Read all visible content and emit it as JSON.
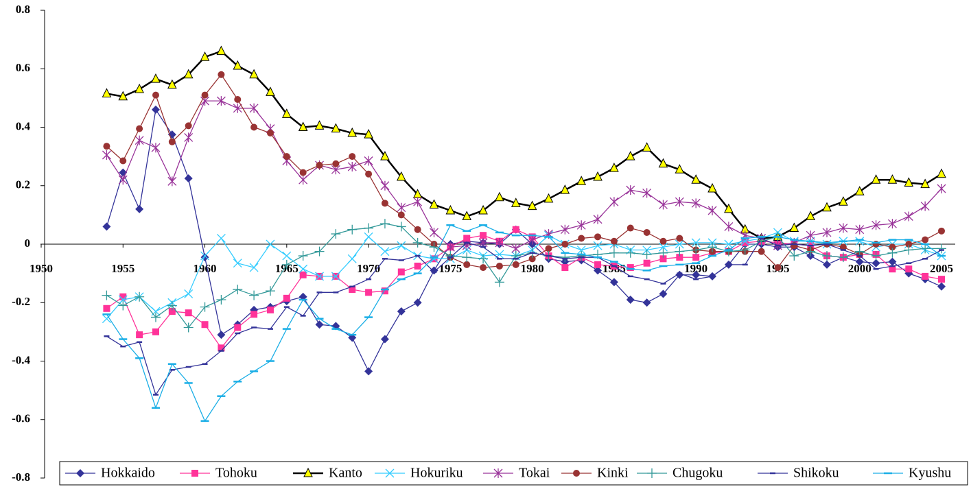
{
  "chart_data": {
    "type": "line",
    "x": [
      1954,
      1955,
      1956,
      1957,
      1958,
      1959,
      1960,
      1961,
      1962,
      1963,
      1964,
      1965,
      1966,
      1967,
      1968,
      1969,
      1970,
      1971,
      1972,
      1973,
      1974,
      1975,
      1976,
      1977,
      1978,
      1979,
      1980,
      1981,
      1982,
      1983,
      1984,
      1985,
      1986,
      1987,
      1988,
      1989,
      1990,
      1991,
      1992,
      1993,
      1994,
      1995,
      1996,
      1997,
      1998,
      1999,
      2000,
      2001,
      2002,
      2003,
      2004,
      2005
    ],
    "xlim": [
      1950,
      2005
    ],
    "xticks": [
      1950,
      1955,
      1960,
      1965,
      1970,
      1975,
      1980,
      1985,
      1990,
      1995,
      2000,
      2005
    ],
    "ylim": [
      -0.8,
      0.8
    ],
    "yticks": [
      0.8,
      0.6,
      0.4,
      0.2,
      0,
      -0.2,
      -0.4,
      -0.6,
      -0.8
    ],
    "legend": "bottom",
    "series": [
      {
        "name": "Hokkaido",
        "color": "#333399",
        "marker": "diamond",
        "values": [
          0.06,
          0.245,
          0.12,
          0.46,
          0.375,
          0.225,
          -0.045,
          -0.31,
          -0.275,
          -0.225,
          -0.215,
          -0.195,
          -0.18,
          -0.275,
          -0.28,
          -0.32,
          -0.435,
          -0.325,
          -0.23,
          -0.2,
          -0.09,
          0.0,
          0.01,
          0.005,
          0.0,
          0.05,
          0.0,
          -0.05,
          -0.06,
          -0.055,
          -0.09,
          -0.13,
          -0.19,
          -0.2,
          -0.17,
          -0.105,
          -0.105,
          -0.11,
          -0.07,
          0.0,
          0.0,
          -0.01,
          -0.01,
          -0.04,
          -0.07,
          -0.045,
          -0.06,
          -0.065,
          -0.06,
          -0.1,
          -0.12,
          -0.145
        ]
      },
      {
        "name": "Tohoku",
        "color": "#ff3399",
        "marker": "square",
        "values": [
          -0.22,
          -0.18,
          -0.31,
          -0.3,
          -0.23,
          -0.235,
          -0.275,
          -0.355,
          -0.285,
          -0.24,
          -0.225,
          -0.185,
          -0.105,
          -0.11,
          -0.11,
          -0.155,
          -0.165,
          -0.16,
          -0.095,
          -0.075,
          -0.05,
          -0.01,
          0.02,
          0.03,
          0.01,
          0.05,
          0.025,
          -0.04,
          -0.08,
          -0.045,
          -0.07,
          -0.075,
          -0.08,
          -0.065,
          -0.05,
          -0.045,
          -0.045,
          -0.03,
          -0.025,
          0.005,
          0.01,
          0.005,
          0.0,
          -0.005,
          -0.04,
          -0.045,
          -0.035,
          -0.035,
          -0.085,
          -0.085,
          -0.11,
          -0.12
        ]
      },
      {
        "name": "Kanto",
        "color": "#000000",
        "marker": "triangle",
        "marker_fill": "#ffff00",
        "values": [
          0.515,
          0.505,
          0.53,
          0.565,
          0.545,
          0.58,
          0.64,
          0.66,
          0.61,
          0.58,
          0.52,
          0.445,
          0.4,
          0.405,
          0.395,
          0.38,
          0.375,
          0.3,
          0.23,
          0.17,
          0.135,
          0.115,
          0.095,
          0.115,
          0.16,
          0.14,
          0.13,
          0.155,
          0.185,
          0.215,
          0.23,
          0.26,
          0.3,
          0.33,
          0.275,
          0.255,
          0.22,
          0.19,
          0.12,
          0.05,
          0.02,
          0.025,
          0.055,
          0.095,
          0.125,
          0.145,
          0.18,
          0.22,
          0.22,
          0.21,
          0.205,
          0.24
        ]
      },
      {
        "name": "Hokuriku",
        "color": "#33ccff",
        "marker": "x",
        "values": [
          -0.255,
          -0.19,
          -0.18,
          -0.23,
          -0.2,
          -0.17,
          -0.04,
          0.02,
          -0.065,
          -0.08,
          0.0,
          -0.04,
          -0.085,
          -0.11,
          -0.11,
          -0.05,
          0.025,
          -0.025,
          -0.005,
          -0.04,
          -0.05,
          -0.05,
          -0.02,
          -0.04,
          -0.035,
          -0.04,
          -0.02,
          0.03,
          0.0,
          -0.02,
          -0.005,
          0.0,
          -0.02,
          -0.02,
          -0.01,
          0.0,
          0.005,
          0.005,
          0.0,
          0.01,
          0.02,
          0.04,
          0.01,
          0.01,
          0.0,
          0.01,
          0.01,
          -0.01,
          0.0,
          0.0,
          -0.02,
          -0.04
        ]
      },
      {
        "name": "Tokai",
        "color": "#993399",
        "marker": "star",
        "values": [
          0.305,
          0.22,
          0.355,
          0.33,
          0.215,
          0.365,
          0.49,
          0.49,
          0.465,
          0.465,
          0.395,
          0.285,
          0.22,
          0.27,
          0.255,
          0.265,
          0.285,
          0.2,
          0.125,
          0.145,
          0.04,
          -0.01,
          -0.005,
          0.005,
          0.005,
          -0.015,
          0.015,
          0.035,
          0.05,
          0.065,
          0.085,
          0.145,
          0.185,
          0.175,
          0.135,
          0.145,
          0.14,
          0.115,
          0.06,
          0.03,
          0.02,
          -0.005,
          0.005,
          0.03,
          0.04,
          0.055,
          0.05,
          0.065,
          0.07,
          0.095,
          0.13,
          0.19
        ]
      },
      {
        "name": "Kinki",
        "color": "#993333",
        "marker": "circle",
        "values": [
          0.335,
          0.285,
          0.395,
          0.51,
          0.35,
          0.405,
          0.51,
          0.58,
          0.495,
          0.4,
          0.38,
          0.3,
          0.245,
          0.27,
          0.275,
          0.3,
          0.24,
          0.14,
          0.1,
          0.05,
          0.0,
          -0.045,
          -0.07,
          -0.08,
          -0.075,
          -0.07,
          -0.05,
          -0.015,
          0.0,
          0.02,
          0.025,
          0.01,
          0.055,
          0.04,
          0.01,
          0.02,
          -0.02,
          -0.025,
          -0.025,
          -0.025,
          -0.025,
          -0.08,
          -0.005,
          -0.02,
          0.0,
          -0.01,
          -0.035,
          0.0,
          -0.01,
          0.0,
          0.015,
          0.045
        ]
      },
      {
        "name": "Chugoku",
        "color": "#339999",
        "marker": "plus",
        "values": [
          -0.175,
          -0.21,
          -0.18,
          -0.25,
          -0.21,
          -0.285,
          -0.215,
          -0.19,
          -0.155,
          -0.175,
          -0.16,
          -0.07,
          -0.04,
          -0.025,
          0.035,
          0.05,
          0.055,
          0.07,
          0.06,
          0.005,
          -0.01,
          -0.04,
          -0.045,
          -0.05,
          -0.13,
          -0.04,
          -0.03,
          -0.04,
          -0.045,
          -0.04,
          -0.035,
          -0.03,
          -0.03,
          -0.035,
          -0.03,
          -0.025,
          -0.02,
          -0.01,
          -0.025,
          -0.02,
          0.01,
          0.025,
          -0.04,
          -0.025,
          -0.04,
          -0.045,
          -0.025,
          -0.04,
          -0.03,
          -0.02,
          -0.015,
          -0.015
        ]
      },
      {
        "name": "Shikoku",
        "color": "#333399",
        "marker": "dash",
        "values": [
          -0.315,
          -0.35,
          -0.335,
          -0.515,
          -0.43,
          -0.42,
          -0.41,
          -0.365,
          -0.305,
          -0.285,
          -0.29,
          -0.215,
          -0.245,
          -0.165,
          -0.165,
          -0.145,
          -0.12,
          -0.05,
          -0.055,
          -0.04,
          -0.095,
          -0.045,
          0.005,
          -0.01,
          -0.05,
          -0.05,
          -0.03,
          -0.04,
          -0.05,
          -0.045,
          -0.045,
          -0.075,
          -0.11,
          -0.12,
          -0.135,
          -0.1,
          -0.12,
          -0.11,
          -0.07,
          -0.07,
          0.02,
          -0.005,
          0.0,
          -0.005,
          0.0,
          -0.02,
          -0.04,
          -0.085,
          -0.075,
          -0.065,
          -0.05,
          -0.02
        ]
      },
      {
        "name": "Kyushu",
        "color": "#1aaee6",
        "marker": "longdash",
        "values": [
          -0.24,
          -0.325,
          -0.39,
          -0.56,
          -0.41,
          -0.475,
          -0.605,
          -0.52,
          -0.47,
          -0.435,
          -0.4,
          -0.29,
          -0.19,
          -0.255,
          -0.29,
          -0.31,
          -0.25,
          -0.155,
          -0.12,
          -0.1,
          -0.045,
          0.065,
          0.045,
          0.065,
          0.04,
          0.03,
          0.03,
          0.025,
          -0.03,
          -0.035,
          -0.045,
          -0.06,
          -0.085,
          -0.09,
          -0.075,
          -0.07,
          -0.065,
          -0.04,
          -0.02,
          0.02,
          0.025,
          0.025,
          0.015,
          0.01,
          0.005,
          0.01,
          0.015,
          0.005,
          0.015,
          0.015,
          0.0,
          -0.04
        ]
      }
    ]
  }
}
